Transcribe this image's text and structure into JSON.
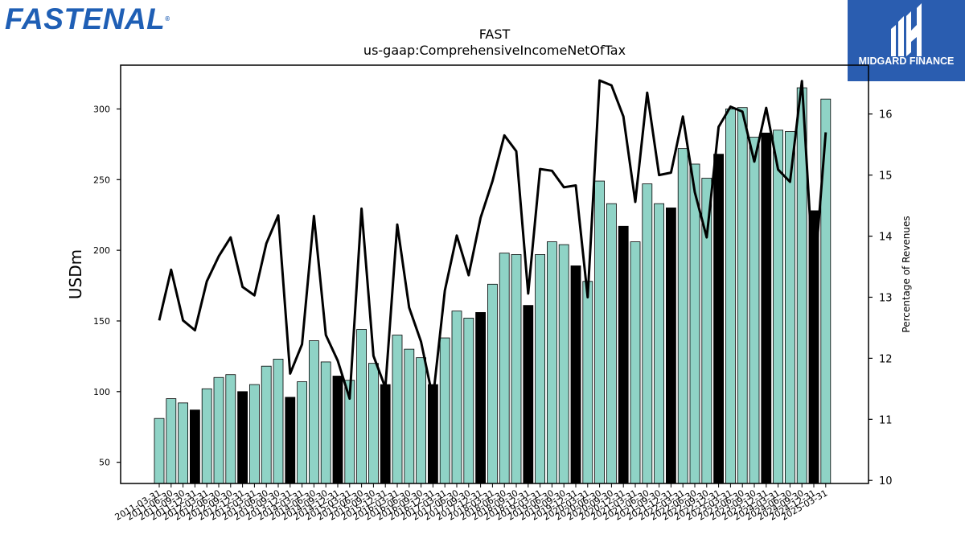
{
  "header": {
    "logo_text": "FASTENAL",
    "logo_mark": "®",
    "sponsor_text": "MIDGARD FINANCE"
  },
  "colors": {
    "bar_default": "#8fd3c6",
    "bar_highlight": "#000000",
    "line": "#000000",
    "sponsor_bg": "#2a5db0",
    "logo": "#1f5fb5"
  },
  "chart_data": {
    "type": "bar",
    "title": "FAST",
    "subtitle": "us-gaap:ComprehensiveIncomeNetOfTax",
    "ylabel": "USDm",
    "y2label": "Percentage of Revenues",
    "ylim": [
      35,
      331
    ],
    "y2lim": [
      9.95,
      16.8
    ],
    "yticks": [
      50,
      100,
      150,
      200,
      250,
      300
    ],
    "y2ticks": [
      10,
      11,
      12,
      13,
      14,
      15,
      16
    ],
    "categories": [
      "2011-03-31",
      "2011-06-30",
      "2011-09-30",
      "2011-12-31",
      "2012-03-31",
      "2012-06-30",
      "2012-09-30",
      "2012-12-31",
      "2013-03-31",
      "2013-06-30",
      "2013-09-30",
      "2013-12-31",
      "2014-03-31",
      "2014-06-30",
      "2014-09-30",
      "2014-12-31",
      "2015-03-31",
      "2015-06-30",
      "2015-09-30",
      "2015-12-31",
      "2016-03-31",
      "2016-06-30",
      "2016-09-30",
      "2016-12-31",
      "2017-03-31",
      "2017-06-30",
      "2017-09-30",
      "2017-12-31",
      "2018-03-31",
      "2018-06-30",
      "2018-09-30",
      "2018-12-31",
      "2019-03-31",
      "2019-06-30",
      "2019-09-30",
      "2019-12-31",
      "2020-03-31",
      "2020-06-30",
      "2020-09-30",
      "2020-12-31",
      "2021-03-31",
      "2021-06-30",
      "2021-09-30",
      "2021-12-31",
      "2022-03-31",
      "2022-06-30",
      "2022-09-30",
      "2022-12-31",
      "2023-03-31",
      "2023-06-30",
      "2023-09-30",
      "2023-12-31",
      "2024-03-31",
      "2024-06-30",
      "2024-09-30",
      "2024-12-31",
      "2025-03-31"
    ],
    "series": [
      {
        "type": "bar",
        "values": [
          81,
          95,
          92,
          87,
          102,
          110,
          112,
          100,
          105,
          118,
          123,
          96,
          107,
          136,
          121,
          111,
          108,
          144,
          120,
          105,
          140,
          130,
          124,
          105,
          138,
          157,
          152,
          156,
          176,
          198,
          197,
          161,
          197,
          206,
          204,
          189,
          178,
          249,
          233,
          217,
          206,
          247,
          233,
          230,
          272,
          261,
          251,
          268,
          300,
          301,
          280,
          283,
          285,
          284,
          315,
          228,
          307
        ],
        "highlight": [
          false,
          false,
          false,
          true,
          false,
          false,
          false,
          true,
          false,
          false,
          false,
          true,
          false,
          false,
          false,
          true,
          false,
          false,
          false,
          true,
          false,
          false,
          false,
          true,
          false,
          false,
          false,
          true,
          false,
          false,
          false,
          true,
          false,
          false,
          false,
          true,
          false,
          false,
          false,
          true,
          false,
          false,
          false,
          true,
          false,
          false,
          false,
          true,
          false,
          false,
          false,
          true,
          false,
          false,
          false,
          true,
          false
        ]
      },
      {
        "type": "line",
        "axis": "right",
        "values": [
          12.62,
          13.45,
          12.62,
          12.46,
          13.26,
          13.67,
          13.98,
          13.17,
          13.03,
          13.88,
          14.34,
          11.75,
          12.23,
          14.33,
          12.38,
          11.96,
          11.34,
          14.45,
          12.04,
          11.52,
          14.19,
          12.83,
          12.27,
          11.34,
          13.11,
          14.01,
          13.36,
          14.3,
          14.9,
          15.65,
          15.39,
          13.06,
          15.1,
          15.07,
          14.8,
          14.83,
          13.0,
          16.55,
          16.47,
          15.96,
          14.56,
          16.35,
          15.0,
          15.04,
          15.96,
          14.72,
          13.98,
          15.79,
          16.12,
          16.04,
          15.22,
          16.1,
          15.09,
          14.89,
          16.54,
          13.22,
          15.7
        ]
      }
    ]
  }
}
